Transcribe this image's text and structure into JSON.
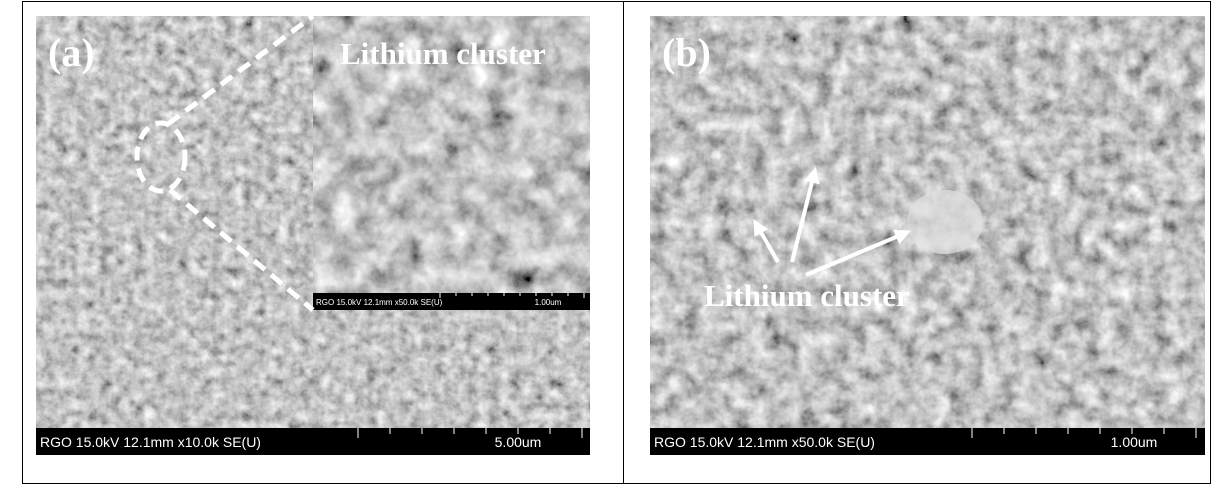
{
  "panels": [
    {
      "label": "(a)",
      "annotation": "Lithium cluster",
      "info_bar": {
        "text": "RGO 15.0kV 12.1mm x10.0k SE(U)",
        "scale": "5.00um"
      },
      "inset": {
        "info_bar": {
          "text": "RGO 15.0kV 12.1mm x50.0k SE(U)",
          "scale": "1.00um"
        }
      }
    },
    {
      "label": "(b)",
      "annotation": "Lithium cluster",
      "info_bar": {
        "text": "RGO 15.0kV 12.1mm x50.0k SE(U)",
        "scale": "1.00um"
      }
    }
  ]
}
